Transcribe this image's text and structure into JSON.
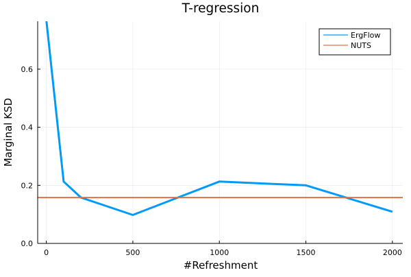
{
  "chart_data": {
    "type": "line",
    "title": "T-regression",
    "xlabel": "#Refreshment",
    "ylabel": "Marginal KSD",
    "xlim": [
      -50,
      2060
    ],
    "ylim": [
      0,
      0.765
    ],
    "xticks": [
      0,
      500,
      1000,
      1500,
      2000
    ],
    "yticks": [
      0.0,
      0.2,
      0.4,
      0.6
    ],
    "ytick_labels": [
      "0.0",
      "0.2",
      "0.4",
      "0.6"
    ],
    "grid": true,
    "legend_position": "top-right",
    "series": [
      {
        "name": "ErgFlow",
        "color": "#009af9",
        "x": [
          0,
          100,
          200,
          500,
          1000,
          1500,
          2000
        ],
        "y": [
          0.77,
          0.213,
          0.158,
          0.098,
          0.213,
          0.2,
          0.109
        ]
      },
      {
        "name": "NUTS",
        "color": "#e26f46",
        "x": [
          -50,
          2060
        ],
        "y": [
          0.158,
          0.158
        ]
      }
    ]
  }
}
